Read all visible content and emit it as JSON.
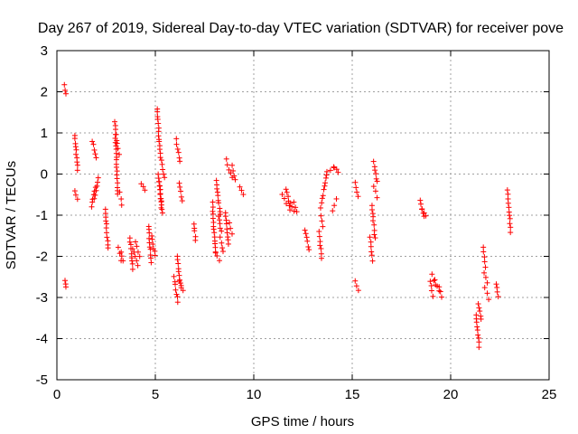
{
  "chart_data": {
    "type": "scatter",
    "title": "Day 267 of 2019, Sidereal Day-to-day VTEC variation (SDTVAR) for receiver pove",
    "xlabel": "GPS time / hours",
    "ylabel": "SDTVAR / TECUs",
    "xlim": [
      0,
      25
    ],
    "ylim": [
      -5,
      3
    ],
    "xticks": [
      0,
      5,
      10,
      15,
      20,
      25
    ],
    "yticks": [
      -5,
      -4,
      -3,
      -2,
      -1,
      0,
      1,
      2,
      3
    ],
    "grid": true,
    "marker": "+",
    "color": "#ff0000",
    "segments": [
      {
        "x": [
          0.4,
          0.45
        ],
        "y": [
          2.15,
          1.95
        ]
      },
      {
        "x": [
          0.42,
          0.45
        ],
        "y": [
          -2.6,
          -2.75
        ]
      },
      {
        "x": [
          0.9,
          1.05
        ],
        "y": [
          0.95,
          0.1
        ]
      },
      {
        "x": [
          0.9,
          1.05
        ],
        "y": [
          -0.4,
          -0.6
        ]
      },
      {
        "x": [
          1.75,
          1.95
        ],
        "y": [
          -0.8,
          -0.3
        ]
      },
      {
        "x": [
          1.8,
          2.0
        ],
        "y": [
          0.8,
          0.4
        ]
      },
      {
        "x": [
          1.9,
          2.1
        ],
        "y": [
          -0.6,
          -0.1
        ]
      },
      {
        "x": [
          2.45,
          2.6
        ],
        "y": [
          -0.85,
          -1.8
        ]
      },
      {
        "x": [
          2.95,
          3.1
        ],
        "y": [
          1.25,
          -0.5
        ]
      },
      {
        "x": [
          3.0,
          3.15
        ],
        "y": [
          0.95,
          0.5
        ]
      },
      {
        "x": [
          3.1,
          3.25
        ],
        "y": [
          -1.8,
          -2.1
        ]
      },
      {
        "x": [
          3.2,
          3.3
        ],
        "y": [
          -0.45,
          -0.75
        ]
      },
      {
        "x": [
          3.25,
          3.35
        ],
        "y": [
          -1.9,
          -2.1
        ]
      },
      {
        "x": [
          3.7,
          3.85
        ],
        "y": [
          -1.55,
          -2.3
        ]
      },
      {
        "x": [
          3.85,
          4.1
        ],
        "y": [
          -1.8,
          -2.2
        ]
      },
      {
        "x": [
          4.0,
          4.2
        ],
        "y": [
          -1.65,
          -2.0
        ]
      },
      {
        "x": [
          4.3,
          4.45
        ],
        "y": [
          -0.25,
          -0.4
        ]
      },
      {
        "x": [
          4.65,
          4.8
        ],
        "y": [
          -1.25,
          -2.15
        ]
      },
      {
        "x": [
          4.8,
          5.0
        ],
        "y": [
          -1.5,
          -2.0
        ]
      },
      {
        "x": [
          5.1,
          5.25
        ],
        "y": [
          1.6,
          0.4
        ]
      },
      {
        "x": [
          5.15,
          5.3
        ],
        "y": [
          0.0,
          -0.8
        ]
      },
      {
        "x": [
          5.2,
          5.35
        ],
        "y": [
          -0.2,
          -0.95
        ]
      },
      {
        "x": [
          5.3,
          5.45
        ],
        "y": [
          0.35,
          -0.1
        ]
      },
      {
        "x": [
          5.95,
          6.15
        ],
        "y": [
          -2.5,
          -3.1
        ]
      },
      {
        "x": [
          6.05,
          6.25
        ],
        "y": [
          0.85,
          0.3
        ]
      },
      {
        "x": [
          6.1,
          6.3
        ],
        "y": [
          -2.0,
          -2.75
        ]
      },
      {
        "x": [
          6.2,
          6.35
        ],
        "y": [
          -0.2,
          -0.65
        ]
      },
      {
        "x": [
          6.2,
          6.4
        ],
        "y": [
          -2.6,
          -2.85
        ]
      },
      {
        "x": [
          6.95,
          7.05
        ],
        "y": [
          -1.2,
          -1.6
        ]
      },
      {
        "x": [
          7.9,
          8.05
        ],
        "y": [
          -0.7,
          -1.9
        ]
      },
      {
        "x": [
          8.05,
          8.25
        ],
        "y": [
          -1.9,
          -2.1
        ]
      },
      {
        "x": [
          8.1,
          8.3
        ],
        "y": [
          -0.15,
          -1.0
        ]
      },
      {
        "x": [
          8.2,
          8.35
        ],
        "y": [
          -1.0,
          -1.4
        ]
      },
      {
        "x": [
          8.3,
          8.45
        ],
        "y": [
          -1.55,
          -1.9
        ]
      },
      {
        "x": [
          8.55,
          8.7
        ],
        "y": [
          -0.95,
          -1.7
        ]
      },
      {
        "x": [
          8.6,
          8.9
        ],
        "y": [
          0.35,
          -0.1
        ]
      },
      {
        "x": [
          8.75,
          8.9
        ],
        "y": [
          -1.2,
          -1.45
        ]
      },
      {
        "x": [
          8.9,
          9.05
        ],
        "y": [
          0.2,
          -0.15
        ]
      },
      {
        "x": [
          9.3,
          9.45
        ],
        "y": [
          -0.3,
          -0.5
        ]
      },
      {
        "x": [
          11.45,
          11.65
        ],
        "y": [
          -0.5,
          -0.7
        ]
      },
      {
        "x": [
          11.65,
          11.85
        ],
        "y": [
          -0.35,
          -0.85
        ]
      },
      {
        "x": [
          11.85,
          12.05
        ],
        "y": [
          -0.7,
          -0.9
        ]
      },
      {
        "x": [
          12.05,
          12.2
        ],
        "y": [
          -0.7,
          -0.9
        ]
      },
      {
        "x": [
          12.6,
          12.8
        ],
        "y": [
          -1.35,
          -1.85
        ]
      },
      {
        "x": [
          13.3,
          13.45
        ],
        "y": [
          -1.4,
          -2.05
        ]
      },
      {
        "x": [
          13.4,
          13.5
        ],
        "y": [
          -1.0,
          -1.3
        ]
      },
      {
        "x": [
          13.4,
          13.7
        ],
        "y": [
          -0.8,
          0.0
        ]
      },
      {
        "x": [
          13.7,
          14.05
        ],
        "y": [
          0.05,
          0.15
        ]
      },
      {
        "x": [
          14.0,
          14.2
        ],
        "y": [
          -0.9,
          -0.6
        ]
      },
      {
        "x": [
          14.1,
          14.3
        ],
        "y": [
          0.15,
          0.05
        ]
      },
      {
        "x": [
          15.15,
          15.3
        ],
        "y": [
          -0.2,
          -0.55
        ]
      },
      {
        "x": [
          15.15,
          15.3
        ],
        "y": [
          -2.6,
          -2.85
        ]
      },
      {
        "x": [
          15.9,
          16.05
        ],
        "y": [
          -1.55,
          -2.1
        ]
      },
      {
        "x": [
          16.0,
          16.15
        ],
        "y": [
          -0.75,
          -1.55
        ]
      },
      {
        "x": [
          16.1,
          16.25
        ],
        "y": [
          -0.3,
          -0.55
        ]
      },
      {
        "x": [
          16.1,
          16.25
        ],
        "y": [
          0.3,
          -0.2
        ]
      },
      {
        "x": [
          18.45,
          18.65
        ],
        "y": [
          -0.65,
          -1.05
        ]
      },
      {
        "x": [
          18.55,
          18.75
        ],
        "y": [
          -0.85,
          -1.0
        ]
      },
      {
        "x": [
          18.95,
          19.1
        ],
        "y": [
          -2.6,
          -2.95
        ]
      },
      {
        "x": [
          19.05,
          19.25
        ],
        "y": [
          -2.45,
          -2.7
        ]
      },
      {
        "x": [
          19.2,
          19.4
        ],
        "y": [
          -2.55,
          -2.85
        ]
      },
      {
        "x": [
          19.4,
          19.55
        ],
        "y": [
          -2.75,
          -3.0
        ]
      },
      {
        "x": [
          21.3,
          21.45
        ],
        "y": [
          -3.4,
          -4.2
        ]
      },
      {
        "x": [
          21.4,
          21.55
        ],
        "y": [
          -3.15,
          -3.55
        ]
      },
      {
        "x": [
          21.65,
          21.75
        ],
        "y": [
          -1.8,
          -2.25
        ]
      },
      {
        "x": [
          21.7,
          21.85
        ],
        "y": [
          -2.4,
          -2.65
        ]
      },
      {
        "x": [
          21.75,
          21.95
        ],
        "y": [
          -2.75,
          -3.05
        ]
      },
      {
        "x": [
          22.3,
          22.4
        ],
        "y": [
          -2.65,
          -3.0
        ]
      },
      {
        "x": [
          22.9,
          23.05
        ],
        "y": [
          -0.4,
          -1.4
        ]
      }
    ]
  }
}
